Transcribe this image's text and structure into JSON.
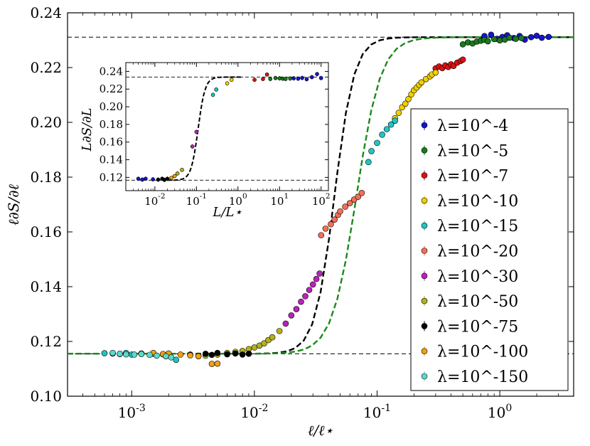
{
  "chart_data": [
    {
      "type": "scatter",
      "xscale": "log",
      "xlim": [
        0.0003,
        4.0
      ],
      "ylim": [
        0.1,
        0.24
      ],
      "xlabel": "ℓ/ℓ⋆",
      "ylabel": "ℓ∂S/∂ℓ",
      "yticks": [
        "0.10",
        "0.12",
        "0.14",
        "0.16",
        "0.18",
        "0.20",
        "0.22",
        "0.24"
      ],
      "ytick_values": [
        0.1,
        0.12,
        0.14,
        0.16,
        0.18,
        0.2,
        0.22,
        0.24
      ],
      "xticks": [
        {
          "base": "10",
          "exp": "-3",
          "value": 0.001
        },
        {
          "base": "10",
          "exp": "-2",
          "value": 0.01
        },
        {
          "base": "10",
          "exp": "-1",
          "value": 0.1
        },
        {
          "base": "10",
          "exp": "0",
          "value": 1
        }
      ],
      "hlines": [
        0.1155,
        0.2311
      ],
      "theory_curves": [
        {
          "name": "black-dashed",
          "color": "#000000",
          "lo": 0.1155,
          "hi": 0.2311,
          "x0": 0.045,
          "width": 0.32,
          "points": 60
        },
        {
          "name": "green-dashed",
          "color": "#1a8a1a",
          "lo": 0.1155,
          "hi": 0.2311,
          "x0": 0.068,
          "width": 0.4,
          "points": 60
        }
      ],
      "legend_position": "right",
      "series": [
        {
          "name": "λ=10^-4",
          "color": "#1515cc",
          "x": [
            0.75,
            0.85,
            0.95,
            1.05,
            1.15,
            1.3,
            1.45,
            1.6,
            1.8,
            2.0,
            2.2,
            2.5
          ],
          "y": [
            0.2315,
            0.232,
            0.2305,
            0.2312,
            0.2318,
            0.2308,
            0.2315,
            0.2302,
            0.2311,
            0.2316,
            0.2309,
            0.2312
          ]
        },
        {
          "name": "λ=10^-5",
          "color": "#1a7a1a",
          "x": [
            0.5,
            0.55,
            0.6,
            0.65,
            0.7,
            0.75,
            0.8,
            0.9,
            1.0,
            1.1,
            1.2,
            1.35,
            1.5
          ],
          "y": [
            0.2285,
            0.2292,
            0.2288,
            0.2295,
            0.2298,
            0.2301,
            0.2296,
            0.2304,
            0.2299,
            0.2302,
            0.2309,
            0.2305,
            0.2308
          ]
        },
        {
          "name": "λ=10^-7",
          "color": "#dd1111",
          "x": [
            0.3,
            0.32,
            0.34,
            0.36,
            0.38,
            0.4,
            0.42,
            0.45,
            0.48,
            0.5
          ],
          "y": [
            0.2197,
            0.2204,
            0.2198,
            0.2208,
            0.2202,
            0.2212,
            0.2206,
            0.2218,
            0.2224,
            0.2229
          ]
        },
        {
          "name": "λ=10^-10",
          "color": "#f0d000",
          "x": [
            0.14,
            0.15,
            0.16,
            0.17,
            0.18,
            0.19,
            0.2,
            0.21,
            0.22,
            0.23,
            0.25,
            0.27,
            0.28,
            0.3
          ],
          "y": [
            0.2015,
            0.2035,
            0.2055,
            0.2068,
            0.2085,
            0.2102,
            0.2117,
            0.2127,
            0.2137,
            0.2146,
            0.2158,
            0.2168,
            0.2175,
            0.2182
          ]
        },
        {
          "name": "λ=10^-15",
          "color": "#22c4c4",
          "x": [
            0.0006,
            0.0007,
            0.0008,
            0.0009,
            0.001,
            0.0012,
            0.0015,
            0.0018,
            0.002,
            0.0023,
            0.085,
            0.09,
            0.1,
            0.11,
            0.12,
            0.13,
            0.14
          ],
          "y": [
            0.1157,
            0.1156,
            0.1154,
            0.1158,
            0.1152,
            0.1156,
            0.1155,
            0.1153,
            0.1149,
            0.1133,
            0.1855,
            0.1895,
            0.1925,
            0.1955,
            0.1975,
            0.1992,
            0.2006
          ]
        },
        {
          "name": "λ=10^-20",
          "color": "#f07058",
          "x": [
            0.035,
            0.038,
            0.042,
            0.045,
            0.048,
            0.05,
            0.055,
            0.06,
            0.065,
            0.07,
            0.075
          ],
          "y": [
            0.1588,
            0.1612,
            0.1628,
            0.1645,
            0.1662,
            0.1675,
            0.1692,
            0.1705,
            0.1718,
            0.1728,
            0.1742
          ]
        },
        {
          "name": "λ=10^-30",
          "color": "#bb22bb",
          "x": [
            0.018,
            0.02,
            0.022,
            0.024,
            0.026,
            0.028,
            0.03,
            0.032,
            0.034
          ],
          "y": [
            0.1265,
            0.1295,
            0.1318,
            0.1345,
            0.1365,
            0.1388,
            0.1408,
            0.1428,
            0.1448
          ]
        },
        {
          "name": "λ=10^-50",
          "color": "#b2b220",
          "x": [
            0.004,
            0.005,
            0.006,
            0.007,
            0.008,
            0.009,
            0.01,
            0.011,
            0.012,
            0.013,
            0.014,
            0.016
          ],
          "y": [
            0.1148,
            0.1152,
            0.1158,
            0.1162,
            0.1165,
            0.1172,
            0.1178,
            0.1185,
            0.1193,
            0.1205,
            0.1215,
            0.1238
          ]
        },
        {
          "name": "λ=10^-75",
          "color": "#000000",
          "x": [
            0.003,
            0.0035,
            0.004,
            0.0045,
            0.005,
            0.006,
            0.007,
            0.008,
            0.009
          ],
          "y": [
            0.1152,
            0.1148,
            0.1155,
            0.1151,
            0.1158,
            0.1153,
            0.1156,
            0.1152,
            0.1155
          ]
        },
        {
          "name": "λ=10^-100",
          "color": "#f0a010",
          "x": [
            0.0015,
            0.0018,
            0.002,
            0.0025,
            0.003,
            0.0035,
            0.0045,
            0.005
          ],
          "y": [
            0.1158,
            0.1154,
            0.1156,
            0.1152,
            0.1149,
            0.1146,
            0.1118,
            0.1119
          ]
        },
        {
          "name": "λ=10^-150",
          "color": "#5cd8cc",
          "x": [
            0.0007,
            0.0008,
            0.0009,
            0.00105,
            0.0012,
            0.0014,
            0.0016,
            0.0019,
            0.0021
          ],
          "y": [
            0.1158,
            0.1155,
            0.1153,
            0.1152,
            0.1154,
            0.1151,
            0.1148,
            0.1146,
            0.1142
          ]
        }
      ]
    },
    {
      "type": "scatter",
      "role": "inset",
      "xscale": "log",
      "xlim": [
        0.002,
        150
      ],
      "ylim": [
        0.105,
        0.25
      ],
      "xlabel": "L/L⋆",
      "ylabel": "L∂S/∂L",
      "yticks": [
        "0.12",
        "0.14",
        "0.16",
        "0.18",
        "0.20",
        "0.22",
        "0.24"
      ],
      "ytick_values": [
        0.12,
        0.14,
        0.16,
        0.18,
        0.2,
        0.22,
        0.24
      ],
      "xticks": [
        {
          "base": "10",
          "exp": "-2",
          "value": 0.01
        },
        {
          "base": "10",
          "exp": "-1",
          "value": 0.1
        },
        {
          "base": "10",
          "exp": "0",
          "value": 1
        },
        {
          "base": "10",
          "exp": "1",
          "value": 10
        },
        {
          "base": "10",
          "exp": "2",
          "value": 100
        }
      ],
      "hlines": [
        0.1168,
        0.2336
      ],
      "theory_curves": [
        {
          "name": "inset-black-dashed",
          "color": "#000000",
          "lo": 0.1168,
          "hi": 0.2336,
          "x0": 0.11,
          "width": 0.34,
          "points": 50
        }
      ],
      "points": [
        {
          "color": "#1515cc",
          "x": [
            0.004,
            0.005,
            0.006,
            0.009,
            60,
            80,
            100
          ],
          "y": [
            0.1185,
            0.1175,
            0.1185,
            0.1178,
            0.2335,
            0.237,
            0.2325
          ]
        },
        {
          "color": "#000000",
          "x": [
            0.012,
            0.015,
            0.017,
            0.02
          ],
          "y": [
            0.1175,
            0.1185,
            0.1172,
            0.1185
          ]
        },
        {
          "color": "#f0a010",
          "x": [
            0.025,
            0.03
          ],
          "y": [
            0.1195,
            0.1215
          ]
        },
        {
          "color": "#b2b220",
          "x": [
            0.035,
            0.045
          ],
          "y": [
            0.1245,
            0.1285
          ]
        },
        {
          "color": "#bb22bb",
          "x": [
            0.08,
            0.1
          ],
          "y": [
            0.155,
            0.1715
          ]
        },
        {
          "color": "#22c4c4",
          "x": [
            0.25,
            0.3
          ],
          "y": [
            0.2135,
            0.2195
          ]
        },
        {
          "color": "#f0d000",
          "x": [
            0.55,
            0.7
          ],
          "y": [
            0.2265,
            0.2305
          ]
        },
        {
          "color": "#dd1111",
          "x": [
            2.5,
            4,
            5
          ],
          "y": [
            0.2305,
            0.2315,
            0.2365
          ]
        },
        {
          "color": "#1a7a1a",
          "x": [
            6,
            8,
            10,
            12,
            14,
            18
          ],
          "y": [
            0.2315,
            0.2325,
            0.2322,
            0.2318,
            0.2315,
            0.232
          ]
        },
        {
          "color": "#1515cc",
          "x": [
            22,
            28,
            35,
            45
          ],
          "y": [
            0.2322,
            0.2318,
            0.2326,
            0.2312
          ]
        }
      ]
    }
  ]
}
